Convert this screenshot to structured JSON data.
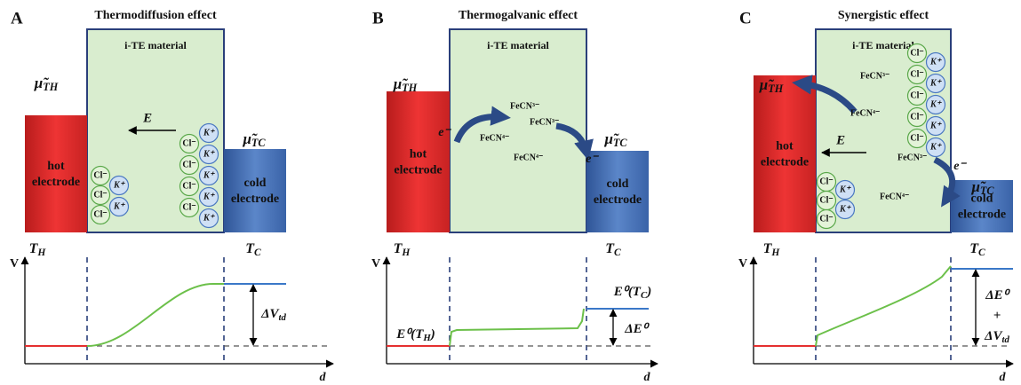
{
  "panels": [
    {
      "letter": "A",
      "title": "Thermodiffusion effect",
      "material": "i-TE material",
      "hot_electrode": [
        "hot",
        "electrode"
      ],
      "cold_electrode": [
        "cold",
        "electrode"
      ],
      "mu_hot": {
        "base": "μ̃",
        "sub": "TH"
      },
      "mu_cold": {
        "base": "μ̃",
        "sub": "TC"
      },
      "t_hot": {
        "base": "T",
        "sub": "H"
      },
      "t_cold": {
        "base": "T",
        "sub": "C"
      },
      "field": "E⃗",
      "ions": {
        "anion": "Cl⁻",
        "cation": "K⁺"
      },
      "axis_y": "V",
      "axis_x": "d",
      "delta": [
        {
          "base": "ΔV",
          "sub": "td"
        }
      ]
    },
    {
      "letter": "B",
      "title": "Thermogalvanic effect",
      "material": "i-TE material",
      "hot_electrode": [
        "hot",
        "electrode"
      ],
      "cold_electrode": [
        "cold",
        "electrode"
      ],
      "mu_hot": {
        "base": "μ̃",
        "sub": "TH"
      },
      "mu_cold": {
        "base": "μ̃",
        "sub": "TC"
      },
      "t_hot": {
        "base": "T",
        "sub": "H"
      },
      "t_cold": {
        "base": "T",
        "sub": "C"
      },
      "species": [
        "FeCN³⁻",
        "FeCN⁴⁻",
        "FeCN³⁻",
        "FeCN⁴⁻"
      ],
      "electron": "e⁻",
      "axis_y": "V",
      "axis_x": "d",
      "levels": [
        {
          "base": "E⁰(T",
          "sub": "H",
          "tail": ")"
        },
        {
          "base": "E⁰(T",
          "sub": "C",
          "tail": ")"
        }
      ],
      "delta": [
        {
          "base": "ΔE⁰"
        }
      ]
    },
    {
      "letter": "C",
      "title": "Synergistic effect",
      "material": "i-TE material",
      "hot_electrode": [
        "hot",
        "electrode"
      ],
      "cold_electrode": [
        "cold",
        "electrode"
      ],
      "mu_hot": {
        "base": "μ̃",
        "sub": "TH"
      },
      "mu_cold": {
        "base": "μ̃",
        "sub": "TC"
      },
      "t_hot": {
        "base": "T",
        "sub": "H"
      },
      "t_cold": {
        "base": "T",
        "sub": "C"
      },
      "field": "E⃗",
      "ions": {
        "anion": "Cl⁻",
        "cation": "K⁺"
      },
      "species": [
        "FeCN³⁻",
        "FeCN⁴⁻",
        "FeCN³⁻",
        "FeCN⁴⁻"
      ],
      "electron": "e⁻",
      "axis_y": "V",
      "axis_x": "d",
      "delta": [
        {
          "base": "ΔE⁰"
        },
        {
          "base": "+"
        },
        {
          "base": "ΔV",
          "sub": "td"
        }
      ]
    }
  ]
}
